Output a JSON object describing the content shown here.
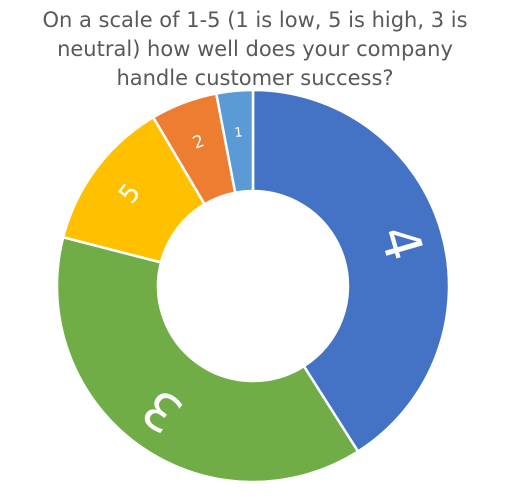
{
  "chart_data": {
    "type": "pie",
    "variant": "doughnut",
    "title_lines": [
      "On a scale of 1-5 (1 is low, 5 is high, 3 is",
      "neutral) how well does your company",
      "handle customer success?"
    ],
    "slices": [
      {
        "label": "4",
        "value": 41,
        "color": "#4472C4"
      },
      {
        "label": "3",
        "value": 38,
        "color": "#70AD47"
      },
      {
        "label": "5",
        "value": 12.5,
        "color": "#FFC000"
      },
      {
        "label": "2",
        "value": 5.5,
        "color": "#ED7D31"
      },
      {
        "label": "1",
        "value": 3,
        "color": "#5B9BD5"
      }
    ],
    "legend": "none"
  }
}
